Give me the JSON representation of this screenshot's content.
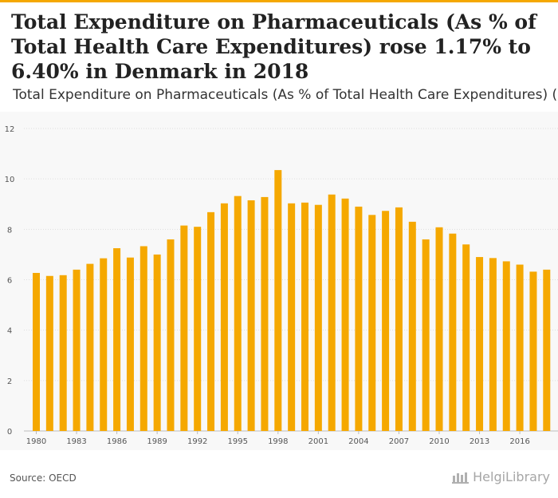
{
  "title": "Total Expenditure on Pharmaceuticals (As % of Total Health Care Expenditures) rose 1.17% to 6.40% in Denmark in 2018",
  "subtitle": "Total Expenditure on Pharmaceuticals (As % of Total Health Care Expenditures) (",
  "source": "Source: OECD",
  "logo_text": "HelgiLibrary",
  "colors": {
    "bar": "#f5a800",
    "grid": "#dddddd",
    "background": "#f8f8f8"
  },
  "chart_data": {
    "type": "bar",
    "title": "",
    "xlabel": "",
    "ylabel": "",
    "ylim": [
      0,
      12
    ],
    "yticks": [
      0,
      2,
      4,
      6,
      8,
      10,
      12
    ],
    "xtick_labels": [
      "1980",
      "1983",
      "1986",
      "1989",
      "1992",
      "1995",
      "1998",
      "2001",
      "2004",
      "2007",
      "2010",
      "2013",
      "2016"
    ],
    "categories": [
      "1980",
      "1981",
      "1982",
      "1983",
      "1984",
      "1985",
      "1986",
      "1987",
      "1988",
      "1989",
      "1990",
      "1991",
      "1992",
      "1993",
      "1994",
      "1995",
      "1996",
      "1997",
      "1998",
      "1999",
      "2000",
      "2001",
      "2002",
      "2003",
      "2004",
      "2005",
      "2006",
      "2007",
      "2008",
      "2009",
      "2010",
      "2011",
      "2012",
      "2013",
      "2014",
      "2015",
      "2016",
      "2017",
      "2018"
    ],
    "values": [
      6.27,
      6.15,
      6.18,
      6.4,
      6.63,
      6.85,
      7.25,
      6.88,
      7.33,
      7.0,
      7.6,
      8.15,
      8.1,
      8.68,
      9.03,
      9.32,
      9.15,
      9.28,
      10.35,
      9.03,
      9.06,
      8.97,
      9.38,
      9.22,
      8.9,
      8.57,
      8.73,
      8.87,
      8.3,
      7.6,
      8.08,
      7.83,
      7.4,
      6.9,
      6.86,
      6.73,
      6.6,
      6.32,
      6.4
    ],
    "grid": true,
    "legend": "none"
  }
}
